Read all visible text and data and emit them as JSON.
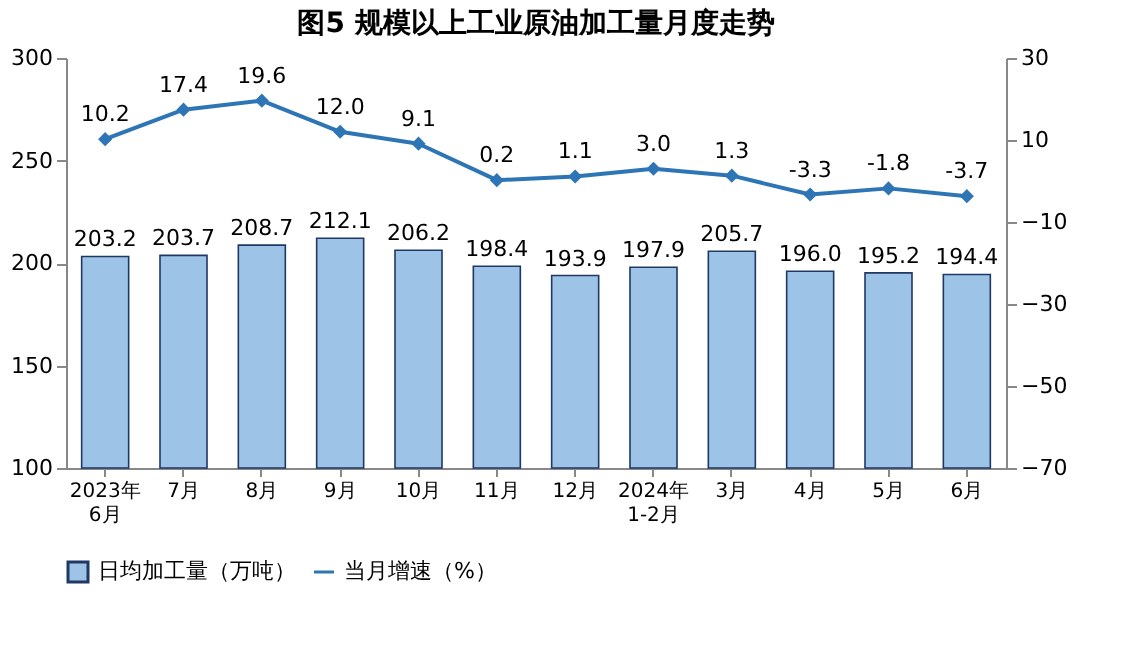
{
  "chart_data": {
    "type": "bar",
    "title": "图5  规模以上工业原油加工量月度走势",
    "categories": [
      "2023年\n6月",
      "7月",
      "8月",
      "9月",
      "10月",
      "11月",
      "12月",
      "2024年\n1-2月",
      "3月",
      "4月",
      "5月",
      "6月"
    ],
    "series": [
      {
        "name": "日均加工量（万吨）",
        "color": "#9dc3e6",
        "values": [
          203.2,
          203.7,
          208.7,
          212.1,
          206.2,
          198.4,
          193.9,
          197.9,
          205.7,
          196.0,
          195.2,
          194.4
        ],
        "value_labels": [
          "203.2",
          "203.7",
          "208.7",
          "212.1",
          "206.2",
          "198.4",
          "193.9",
          "197.9",
          "205.7",
          "196.0",
          "195.2",
          "194.4"
        ]
      },
      {
        "name": "当月增速（%）",
        "type": "line",
        "axis": "y2",
        "color": "#2e75b6",
        "marker": "diamond",
        "values": [
          10.2,
          17.4,
          19.6,
          12.0,
          9.1,
          0.2,
          1.1,
          3.0,
          1.3,
          -3.3,
          -1.8,
          -3.7
        ],
        "value_labels": [
          "10.2",
          "17.4",
          "19.6",
          "12.0",
          "9.1",
          "0.2",
          "1.1",
          "3.0",
          "1.3",
          "-3.3",
          "-1.8",
          "-3.7"
        ]
      }
    ],
    "ylim": [
      100,
      300
    ],
    "yticks": [
      100,
      150,
      200,
      250,
      300
    ],
    "y2lim": [
      -70,
      30
    ],
    "y2ticks": [
      -70,
      -50,
      -30,
      -10,
      10,
      30
    ],
    "legend": "bottom"
  }
}
